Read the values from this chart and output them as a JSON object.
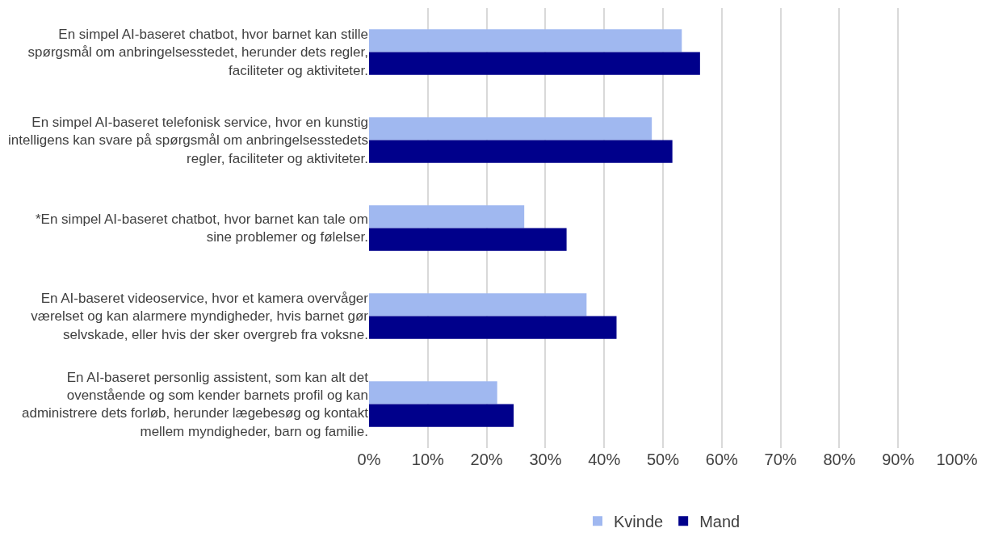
{
  "chart_data": {
    "type": "bar",
    "orientation": "horizontal",
    "categories": [
      "En simpel AI-baseret chatbot, hvor barnet kan stille spørgsmål om anbringelsesstedet, herunder dets regler, faciliteter og aktiviteter.",
      "En simpel AI-baseret telefonisk service, hvor en kunstig intelligens kan svare på spørgsmål om anbringelsesstedets regler, faciliteter og aktiviteter.",
      "*En simpel AI-baseret chatbot, hvor barnet kan tale om sine problemer og følelser.",
      "En AI-baseret videoservice, hvor et kamera overvåger værelset og kan alarmere myndigheder, hvis barnet gør selvskade, eller hvis der sker overgreb fra voksne.",
      "En AI-baseret personlig assistent, som kan alt det ovenstående og som kender barnets profil og kan administrere dets forløb, herunder lægebesøg og kontakt mellem myndigheder, barn og familie."
    ],
    "series": [
      {
        "name": "Kvinde",
        "color": "#a0b8f0",
        "values": [
          53.2,
          48.1,
          26.4,
          37.0,
          21.8
        ]
      },
      {
        "name": "Mand",
        "color": "#00008b",
        "values": [
          56.3,
          51.6,
          33.6,
          42.1,
          24.6
        ]
      }
    ],
    "xlim": [
      0,
      100
    ],
    "xticks": [
      {
        "value": 0,
        "label": "0%"
      },
      {
        "value": 10,
        "label": "10%"
      },
      {
        "value": 20,
        "label": "20%"
      },
      {
        "value": 30,
        "label": "30%"
      },
      {
        "value": 40,
        "label": "40%"
      },
      {
        "value": 50,
        "label": "50%"
      },
      {
        "value": 60,
        "label": "60%"
      },
      {
        "value": 70,
        "label": "70%"
      },
      {
        "value": 80,
        "label": "80%"
      },
      {
        "value": 90,
        "label": "90%"
      },
      {
        "value": 100,
        "label": "100%"
      }
    ],
    "grid": "x",
    "legend": "bottom"
  }
}
